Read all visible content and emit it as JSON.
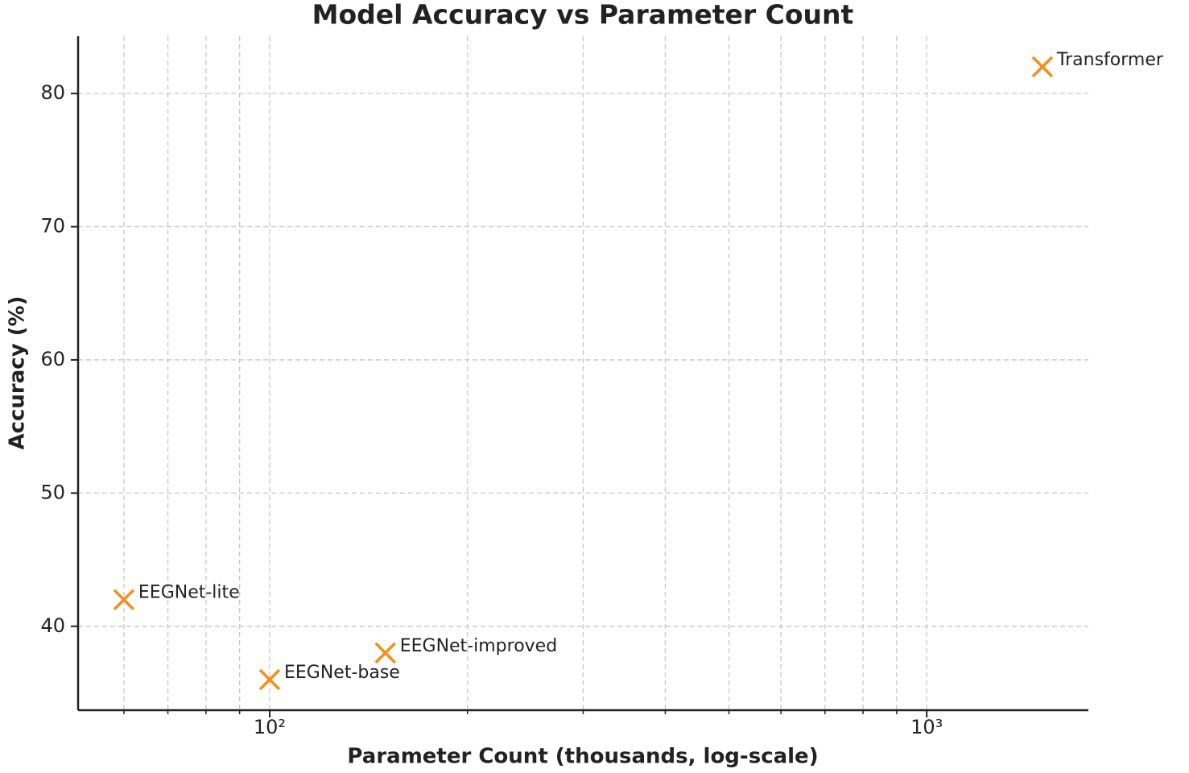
{
  "chart_data": {
    "type": "scatter",
    "title": "Model Accuracy vs Parameter Count",
    "x_label": "Parameter Count (thousands, log-scale)",
    "y_label": "Accuracy (%)",
    "x": [
      60,
      100,
      150,
      1500
    ],
    "values": [
      42,
      36,
      38,
      82
    ],
    "point_labels": [
      "EEGNet-lite",
      "EEGNet-base",
      "EEGNet-improved",
      "Transformer"
    ],
    "color": "#f28e1c",
    "marker": "x",
    "xscale": "log",
    "xlim": [
      51.1,
      1762
    ],
    "ylim": [
      33.7,
      84.3
    ],
    "xticks": [
      {
        "value": 100,
        "label": "10²"
      },
      {
        "value": 1000,
        "label": "10³"
      }
    ],
    "xminorticks": [
      60,
      70,
      80,
      90,
      200,
      300,
      400,
      500,
      600,
      700,
      800,
      900
    ],
    "yticks": [
      40,
      50,
      60,
      70,
      80
    ],
    "grid": true
  }
}
